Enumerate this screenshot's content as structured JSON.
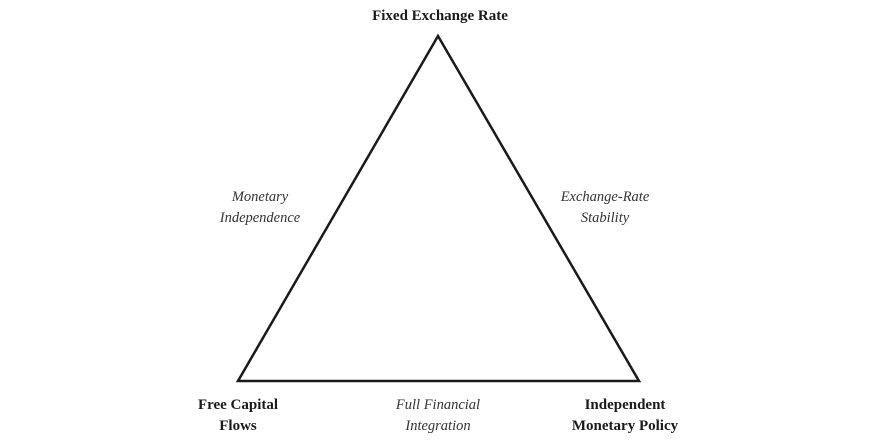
{
  "vertices": {
    "top": {
      "lines": [
        "Fixed Exchange Rate"
      ]
    },
    "bottom_left": {
      "lines": [
        "Free Capital",
        "Flows"
      ]
    },
    "bottom_right": {
      "lines": [
        "Independent",
        "Monetary Policy"
      ]
    }
  },
  "sides": {
    "left": {
      "lines": [
        "Monetary",
        "Independence"
      ]
    },
    "right": {
      "lines": [
        "Exchange-Rate",
        "Stability"
      ]
    },
    "bottom": {
      "lines": [
        "Full Financial",
        "Integration"
      ]
    }
  },
  "colors": {
    "stroke": "#1a1a1a",
    "background": "#ffffff"
  }
}
